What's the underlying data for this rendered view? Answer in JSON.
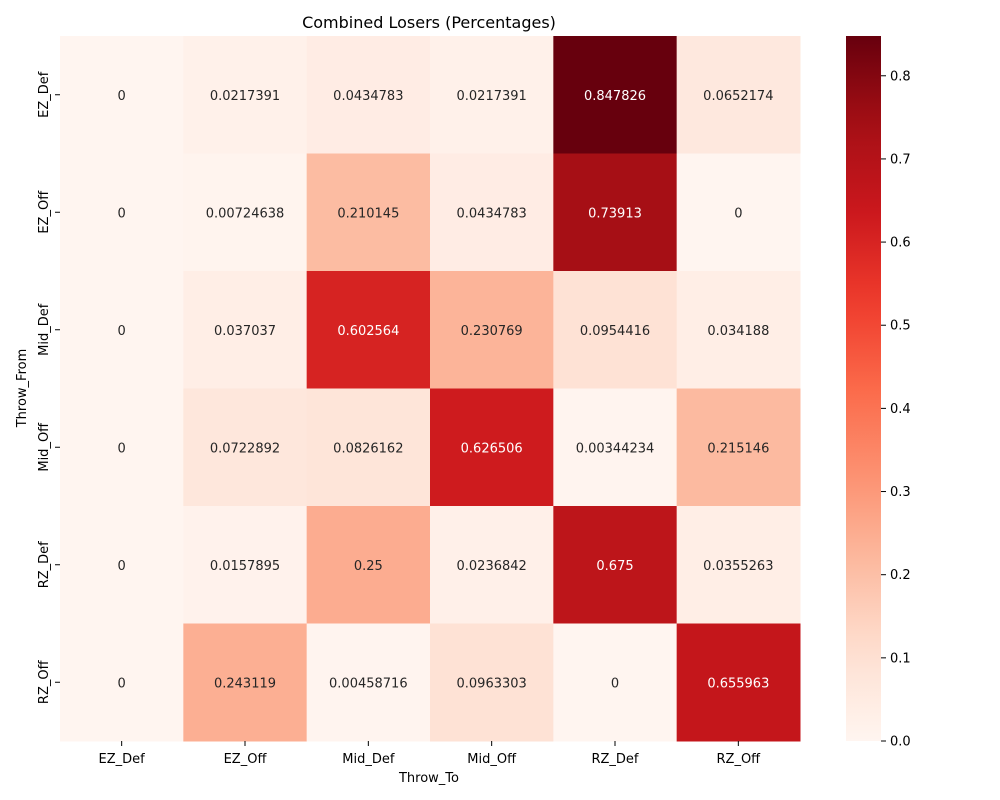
{
  "chart_data": {
    "type": "heatmap",
    "title": "Combined Losers (Percentages)",
    "xlabel": "Throw_To",
    "ylabel": "Throw_From",
    "x_categories": [
      "EZ_Def",
      "EZ_Off",
      "Mid_Def",
      "Mid_Off",
      "RZ_Def",
      "RZ_Off"
    ],
    "y_categories": [
      "EZ_Def",
      "EZ_Off",
      "Mid_Def",
      "Mid_Off",
      "RZ_Def",
      "RZ_Off"
    ],
    "values": [
      [
        0,
        0.0217391,
        0.0434783,
        0.0217391,
        0.847826,
        0.0652174
      ],
      [
        0,
        0.00724638,
        0.210145,
        0.0434783,
        0.73913,
        0
      ],
      [
        0,
        0.037037,
        0.602564,
        0.230769,
        0.0954416,
        0.034188
      ],
      [
        0,
        0.0722892,
        0.0826162,
        0.626506,
        0.00344234,
        0.215146
      ],
      [
        0,
        0.0157895,
        0.25,
        0.0236842,
        0.675,
        0.0355263
      ],
      [
        0,
        0.243119,
        0.00458716,
        0.0963303,
        0,
        0.655963
      ]
    ],
    "annotations": [
      [
        "0",
        "0.0217391",
        "0.0434783",
        "0.0217391",
        "0.847826",
        "0.0652174"
      ],
      [
        "0",
        "0.00724638",
        "0.210145",
        "0.0434783",
        "0.73913",
        "0"
      ],
      [
        "0",
        "0.037037",
        "0.602564",
        "0.230769",
        "0.0954416",
        "0.034188"
      ],
      [
        "0",
        "0.0722892",
        "0.0826162",
        "0.626506",
        "0.00344234",
        "0.215146"
      ],
      [
        "0",
        "0.0157895",
        "0.25",
        "0.0236842",
        "0.675",
        "0.0355263"
      ],
      [
        "0",
        "0.243119",
        "0.00458716",
        "0.0963303",
        "0",
        "0.655963"
      ]
    ],
    "colorbar": {
      "colormap": "Reds",
      "range": [
        0,
        0.847826
      ],
      "ticks": [
        "0.0",
        "0.1",
        "0.2",
        "0.3",
        "0.4",
        "0.5",
        "0.6",
        "0.7",
        "0.8"
      ]
    },
    "colors": {
      "low": "#fff5f0",
      "high": "#67000d",
      "annotation_dark": "#262626",
      "annotation_light": "#ffffff"
    }
  }
}
